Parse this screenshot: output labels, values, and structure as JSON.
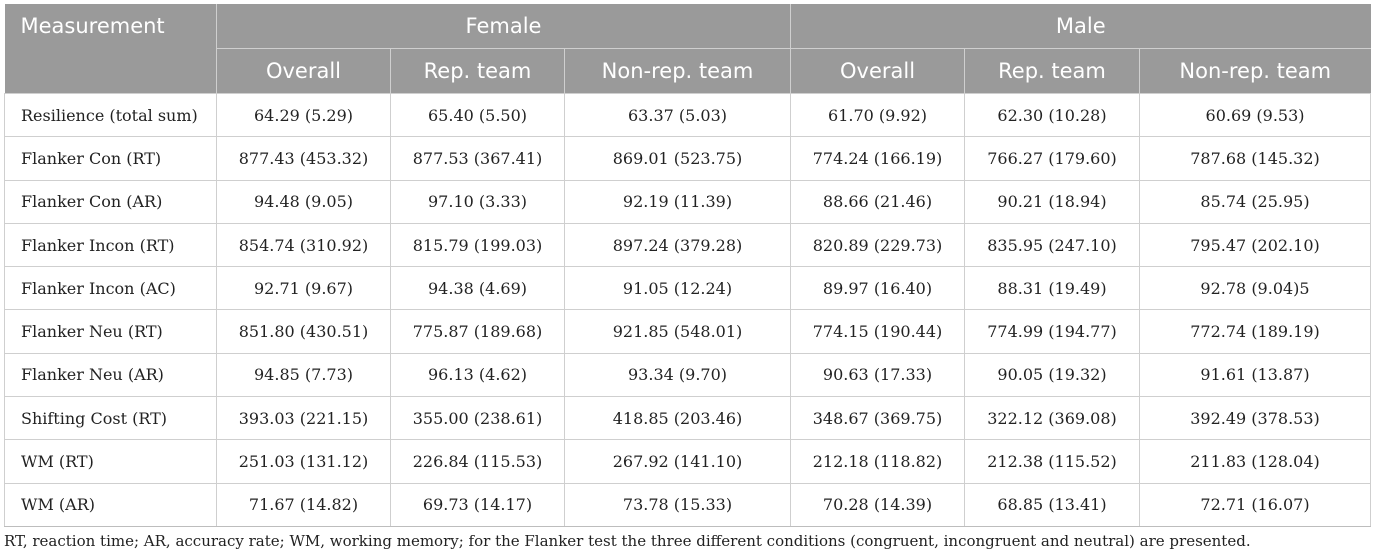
{
  "header": {
    "measurement": "Measurement",
    "groups": [
      "Female",
      "Male"
    ],
    "subcolumns": [
      "Overall",
      "Rep. team",
      "Non-rep. team",
      "Overall",
      "Rep. team",
      "Non-rep. team"
    ]
  },
  "rows": [
    {
      "label": "Resilience (total sum)",
      "cells": [
        "64.29 (5.29)",
        "65.40 (5.50)",
        "63.37 (5.03)",
        "61.70 (9.92)",
        "62.30 (10.28)",
        "60.69 (9.53)"
      ]
    },
    {
      "label": "Flanker Con (RT)",
      "cells": [
        "877.43 (453.32)",
        "877.53 (367.41)",
        "869.01 (523.75)",
        "774.24 (166.19)",
        "766.27 (179.60)",
        "787.68 (145.32)"
      ]
    },
    {
      "label": "Flanker Con (AR)",
      "cells": [
        "94.48 (9.05)",
        "97.10 (3.33)",
        "92.19 (11.39)",
        "88.66 (21.46)",
        "90.21 (18.94)",
        "85.74 (25.95)"
      ]
    },
    {
      "label": "Flanker Incon (RT)",
      "cells": [
        "854.74 (310.92)",
        "815.79 (199.03)",
        "897.24 (379.28)",
        "820.89 (229.73)",
        "835.95 (247.10)",
        "795.47 (202.10)"
      ]
    },
    {
      "label": "Flanker Incon (AC)",
      "cells": [
        "92.71 (9.67)",
        "94.38 (4.69)",
        "91.05 (12.24)",
        "89.97 (16.40)",
        "88.31 (19.49)",
        "92.78 (9.04)5"
      ]
    },
    {
      "label": "Flanker Neu (RT)",
      "cells": [
        "851.80 (430.51)",
        "775.87 (189.68)",
        "921.85 (548.01)",
        "774.15 (190.44)",
        "774.99 (194.77)",
        "772.74 (189.19)"
      ]
    },
    {
      "label": "Flanker Neu (AR)",
      "cells": [
        "94.85 (7.73)",
        "96.13 (4.62)",
        "93.34 (9.70)",
        "90.63 (17.33)",
        "90.05 (19.32)",
        "91.61 (13.87)"
      ]
    },
    {
      "label": "Shifting Cost (RT)",
      "cells": [
        "393.03 (221.15)",
        "355.00 (238.61)",
        "418.85 (203.46)",
        "348.67 (369.75)",
        "322.12 (369.08)",
        "392.49 (378.53)"
      ]
    },
    {
      "label": "WM (RT)",
      "cells": [
        "251.03 (131.12)",
        "226.84 (115.53)",
        "267.92 (141.10)",
        "212.18 (118.82)",
        "212.38 (115.52)",
        "211.83 (128.04)"
      ]
    },
    {
      "label": "WM (AR)",
      "cells": [
        "71.67 (14.82)",
        "69.73 (14.17)",
        "73.78 (15.33)",
        "70.28 (14.39)",
        "68.85 (13.41)",
        "72.71 (16.07)"
      ]
    }
  ],
  "footnote": "RT, reaction time; AR, accuracy rate; WM, working memory; for the Flanker test the three different conditions (congruent, incongruent and neutral) are presented.",
  "colors": {
    "header_bg": "#9a9a9a",
    "header_text": "#ffffff",
    "grid": "#cfcfcf"
  }
}
